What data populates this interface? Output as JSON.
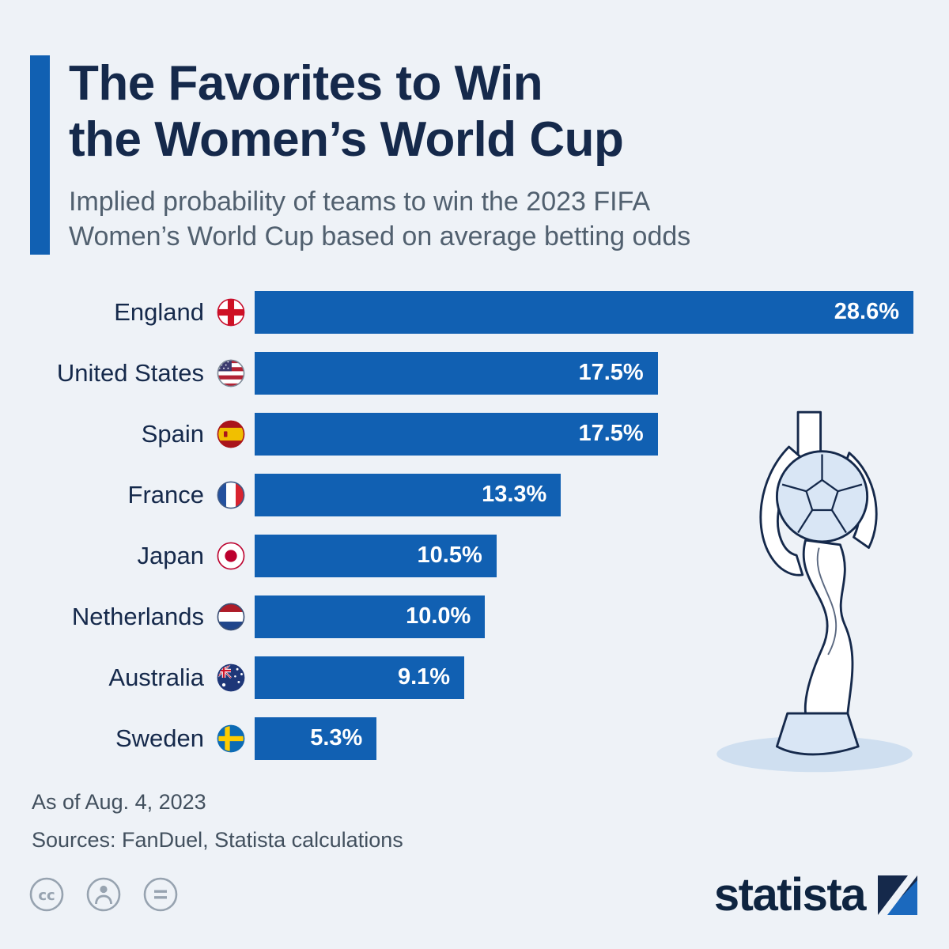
{
  "header": {
    "title_line1": "The Favorites to Win",
    "title_line2": "the Women’s World Cup",
    "subtitle_line1": "Implied probability of teams to win the 2023 FIFA",
    "subtitle_line2": "Women’s World Cup based on average betting odds"
  },
  "chart_data": {
    "type": "bar",
    "orientation": "horizontal",
    "title": "The Favorites to Win the Women’s World Cup",
    "xlabel": "",
    "ylabel": "",
    "xlim": [
      0,
      28.6
    ],
    "grid": false,
    "legend": false,
    "bar_color": "#1160b2",
    "categories": [
      "England",
      "United States",
      "Spain",
      "France",
      "Japan",
      "Netherlands",
      "Australia",
      "Sweden"
    ],
    "values": [
      28.6,
      17.5,
      17.5,
      13.3,
      10.5,
      10.0,
      9.1,
      5.3
    ],
    "value_labels": [
      "28.6%",
      "17.5%",
      "17.5%",
      "13.3%",
      "10.5%",
      "10.0%",
      "9.1%",
      "5.3%"
    ],
    "flags": [
      {
        "id": "england",
        "ring": "#c8102e"
      },
      {
        "id": "usa",
        "ring": "#7e8a98"
      },
      {
        "id": "spain",
        "ring": "#aa151b"
      },
      {
        "id": "france",
        "ring": "#3f5a86"
      },
      {
        "id": "japan",
        "ring": "#bc002d"
      },
      {
        "id": "netherlands",
        "ring": "#3a4f76"
      },
      {
        "id": "australia",
        "ring": "#1e3778"
      },
      {
        "id": "sweden",
        "ring": "#0c6bb5"
      }
    ]
  },
  "footer": {
    "as_of": "As of Aug. 4, 2023",
    "sources": "Sources: FanDuel, Statista calculations"
  },
  "branding": {
    "logo_text": "statista"
  },
  "colors": {
    "background": "#eef2f7",
    "accent": "#1160b2",
    "title": "#15294b",
    "subtitle": "#51606f",
    "bar": "#1160b2",
    "bar_value_text": "#ffffff",
    "trophy_fill": "#d9e6f5",
    "trophy_outline": "#15294b"
  }
}
